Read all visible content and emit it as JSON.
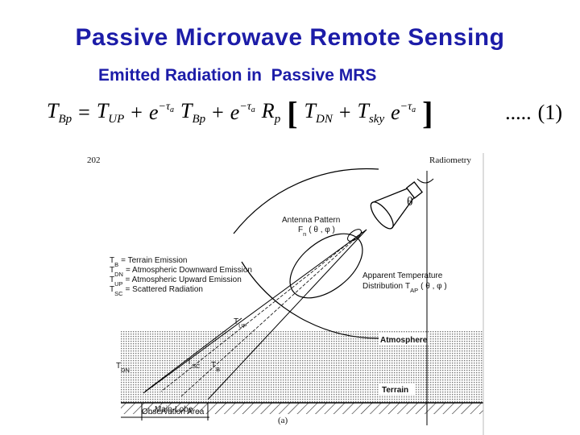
{
  "title": "Passive Microwave Remote Sensing",
  "subtitle": "Emitted Radiation in  Passive MRS",
  "equation": [
    {
      "text": "T",
      "sub": "Bp"
    },
    {
      "text": "="
    },
    {
      "text": "T",
      "sub": "UP"
    },
    {
      "text": "+"
    },
    {
      "text": "e",
      "sup": "−τ",
      "sup_sub": "a"
    },
    {
      "text": "T",
      "sub": "Bp"
    },
    {
      "text": "+"
    },
    {
      "text": "e",
      "sup": "−τ",
      "sup_sub": "a"
    },
    {
      "text": "R",
      "sub": "p"
    },
    {
      "text": "["
    },
    {
      "text": "T",
      "sub": "DN"
    },
    {
      "text": "+"
    },
    {
      "text": "T",
      "sub": "sky"
    },
    {
      "text": "e",
      "sup": "−τ",
      "sup_sub": "a"
    },
    {
      "text": "]"
    },
    {
      "text": "....."
    },
    {
      "text": "(1)"
    }
  ],
  "figure": {
    "page_number": "202",
    "header": "Radiometry",
    "angle": "θ",
    "antenna_pattern": {
      "label": "Antenna Pattern",
      "symbol": "F",
      "sub": "n",
      "args": "( θ , φ )"
    },
    "legend": [
      {
        "symbol": "T",
        "sub": "B",
        "text": "= Terrain Emission"
      },
      {
        "symbol": "T",
        "sub": "DN",
        "text": "= Atmospheric Downward Emission"
      },
      {
        "symbol": "T",
        "sub": "UP",
        "text": "= Atmospheric Upward Emission"
      },
      {
        "symbol": "T",
        "sub": "SC",
        "text": "= Scattered Radiation"
      }
    ],
    "apparent": {
      "line1": "Apparent Temperature",
      "line2": "Distribution",
      "symbol": "T",
      "sub": "AP",
      "args": "( θ , φ )"
    },
    "rays": [
      {
        "symbol": "T",
        "sub": "UP"
      },
      {
        "symbol": "T",
        "sub": "SC"
      },
      {
        "symbol": "T",
        "sub": "B"
      },
      {
        "symbol": "T",
        "sub": "DN"
      }
    ],
    "atmosphere": "Atmosphere",
    "terrain": "Terrain",
    "observation_area": [
      "Main-Lobe",
      "Observation Area"
    ],
    "caption": "(a)"
  }
}
